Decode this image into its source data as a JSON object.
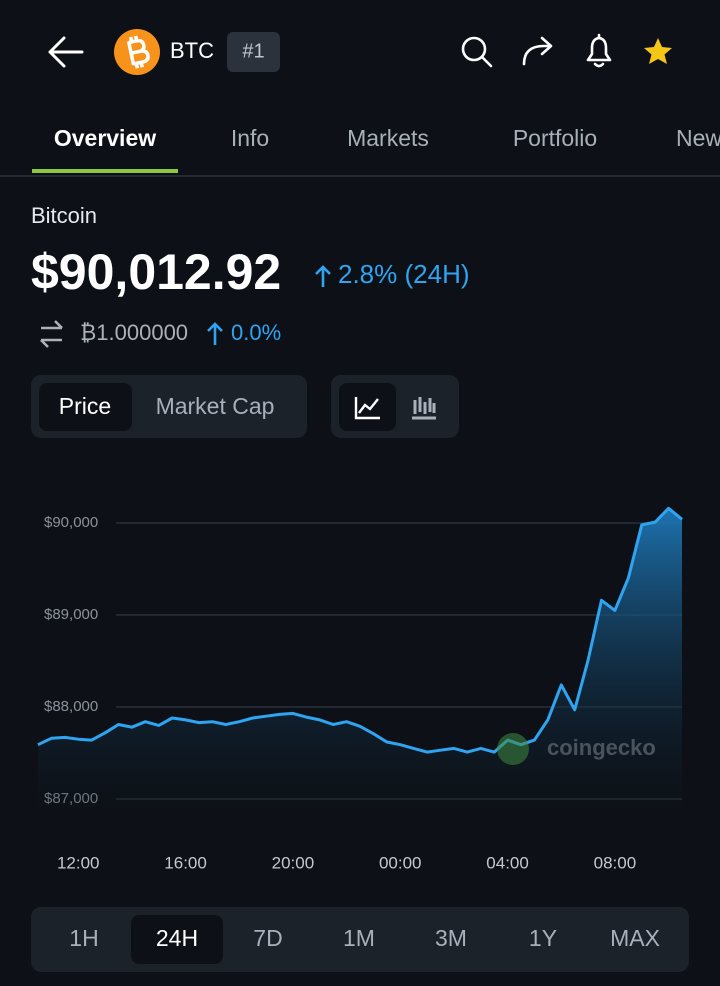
{
  "header": {
    "symbol": "BTC",
    "rank": "#1"
  },
  "tabs": [
    "Overview",
    "Info",
    "Markets",
    "Portfolio",
    "News"
  ],
  "coin": {
    "name": "Bitcoin",
    "price": "$90,012.92",
    "change": "2.8% (24H)",
    "btc_price": "₿1.000000",
    "btc_change": "0.0%"
  },
  "toggle": [
    "Price",
    "Market Cap"
  ],
  "ranges": [
    "1H",
    "24H",
    "7D",
    "1M",
    "3M",
    "1Y",
    "MAX"
  ],
  "watermark": "coingecko",
  "chart_data": {
    "type": "line",
    "color": "#2fa4f0",
    "x": [
      "10:30",
      "11:00",
      "11:30",
      "12:00",
      "12:30",
      "13:00",
      "13:30",
      "14:00",
      "14:30",
      "15:00",
      "15:30",
      "16:00",
      "16:30",
      "17:00",
      "17:30",
      "18:00",
      "18:30",
      "19:00",
      "19:30",
      "20:00",
      "20:30",
      "21:00",
      "21:30",
      "22:00",
      "22:30",
      "23:00",
      "23:30",
      "00:00",
      "00:30",
      "01:00",
      "01:30",
      "02:00",
      "02:30",
      "03:00",
      "03:30",
      "04:00",
      "04:30",
      "05:00",
      "05:30",
      "06:00",
      "06:30",
      "07:00",
      "07:30",
      "08:00",
      "08:30",
      "09:00",
      "09:30",
      "10:00",
      "10:30"
    ],
    "values": [
      87590,
      87660,
      87670,
      87650,
      87640,
      87720,
      87810,
      87780,
      87840,
      87800,
      87880,
      87860,
      87830,
      87840,
      87810,
      87840,
      87880,
      87900,
      87920,
      87930,
      87890,
      87860,
      87810,
      87840,
      87790,
      87710,
      87620,
      87590,
      87550,
      87510,
      87530,
      87550,
      87510,
      87550,
      87510,
      87640,
      87590,
      87640,
      87860,
      88240,
      87970,
      88510,
      89160,
      89050,
      89400,
      89980,
      90010,
      90160,
      90040
    ],
    "ylim": [
      87000,
      90300
    ],
    "yticks": [
      {
        "value": 87000,
        "label": "$87,000"
      },
      {
        "value": 88000,
        "label": "$88,000"
      },
      {
        "value": 89000,
        "label": "$89,000"
      },
      {
        "value": 90000,
        "label": "$90,000"
      }
    ],
    "xticks": [
      "12:00",
      "16:00",
      "20:00",
      "00:00",
      "04:00",
      "08:00"
    ],
    "grid": true
  }
}
